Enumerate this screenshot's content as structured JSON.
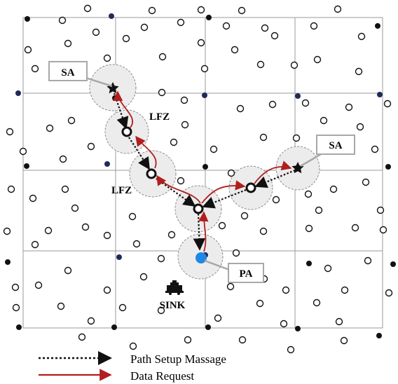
{
  "labels": {
    "sa": "SA",
    "lfz": "LFZ",
    "pa": "PA",
    "sink": "SINK"
  },
  "legend": {
    "path_setup": "Path Setup Massage",
    "data_request": "Data Request"
  },
  "colors": {
    "grid": "#9a9a9a",
    "zone_fill": "#ececec",
    "zone_border": "#8c8c8c",
    "path_setup_arrow": "#111111",
    "data_request_arrow": "#b21e1e",
    "pa_node": "#1e88e5",
    "navy_node": "#1f2a5a",
    "black_node": "#111111",
    "callout_border": "#a8a8a8"
  },
  "icons": {
    "sa": "star-icon",
    "pa": "filled-circle-icon",
    "sink": "vehicle-sink-icon",
    "relay": "bold-ring-icon",
    "sensor": "hollow-circle-icon",
    "grid_node": "filled-dot-icon"
  }
}
